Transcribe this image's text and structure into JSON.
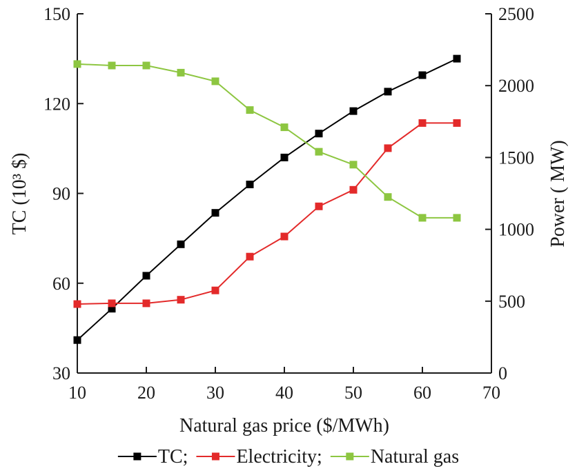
{
  "chart_data": {
    "type": "line",
    "title": "",
    "x": [
      10,
      15,
      20,
      25,
      30,
      35,
      40,
      45,
      50,
      55,
      60,
      65
    ],
    "xlabel": "Natural gas price ($/MWh)",
    "xlim": [
      10,
      70
    ],
    "xticks": [
      "10",
      "20",
      "30",
      "40",
      "50",
      "60",
      "70"
    ],
    "ylabel_left": "TC (10³ $)",
    "ylim_left": [
      30,
      150
    ],
    "yticks_left": [
      "30",
      "60",
      "90",
      "120",
      "150"
    ],
    "ylabel_right": "Power ( MW)",
    "ylim_right": [
      0,
      2500
    ],
    "yticks_right": [
      "0",
      "500",
      "1000",
      "1500",
      "2000",
      "2500"
    ],
    "grid": false,
    "legend_position": "bottom",
    "series": [
      {
        "name": "TC;",
        "axis": "left",
        "color": "#000000",
        "marker": "square",
        "values": [
          41,
          51.5,
          62.5,
          73,
          83.5,
          93,
          102,
          110,
          117.5,
          124,
          129.5,
          135
        ]
      },
      {
        "name": "Electricity;",
        "axis": "right",
        "color": "#e32a2a",
        "marker": "square",
        "values": [
          480,
          485,
          485,
          510,
          575,
          810,
          950,
          1160,
          1275,
          1565,
          1740,
          1740
        ]
      },
      {
        "name": "Natural gas",
        "axis": "right",
        "color": "#8dc641",
        "marker": "square",
        "values": [
          2150,
          2140,
          2140,
          2090,
          2030,
          1830,
          1710,
          1540,
          1450,
          1225,
          1080,
          1080
        ]
      }
    ]
  }
}
